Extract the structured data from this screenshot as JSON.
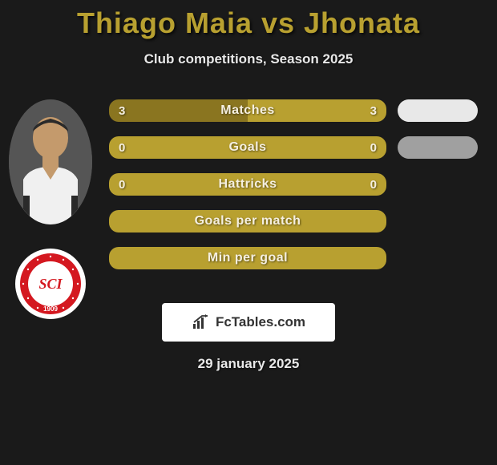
{
  "title": {
    "text": "Thiago Maia vs Jhonata",
    "color": "#b8a030"
  },
  "subtitle": "Club competitions, Season 2025",
  "date": "29 january 2025",
  "logo_text": "FcTables.com",
  "colors": {
    "bar_primary": "#b8a030",
    "bar_secondary": "#8a7520",
    "pill_white": "#e8e8e8",
    "pill_gray": "#a0a0a0"
  },
  "bars": [
    {
      "label": "Matches",
      "left": "3",
      "right": "3",
      "left_color": "#8a7520",
      "right_color": "#b8a030",
      "split": 0.5,
      "pill": "#e8e8e8"
    },
    {
      "label": "Goals",
      "left": "0",
      "right": "0",
      "left_color": "#b8a030",
      "right_color": "#b8a030",
      "split": 0,
      "pill": "#a0a0a0"
    },
    {
      "label": "Hattricks",
      "left": "0",
      "right": "0",
      "left_color": "#b8a030",
      "right_color": "#b8a030",
      "split": 0,
      "pill": null
    },
    {
      "label": "Goals per match",
      "left": "",
      "right": "",
      "left_color": "#b8a030",
      "right_color": "#b8a030",
      "split": 0,
      "pill": null
    },
    {
      "label": "Min per goal",
      "left": "",
      "right": "",
      "left_color": "#b8a030",
      "right_color": "#b8a030",
      "split": 0,
      "pill": null
    }
  ],
  "badge": {
    "outer_color": "#d41820",
    "inner_color": "#ffffff",
    "text": "SCI",
    "year": "1909"
  }
}
